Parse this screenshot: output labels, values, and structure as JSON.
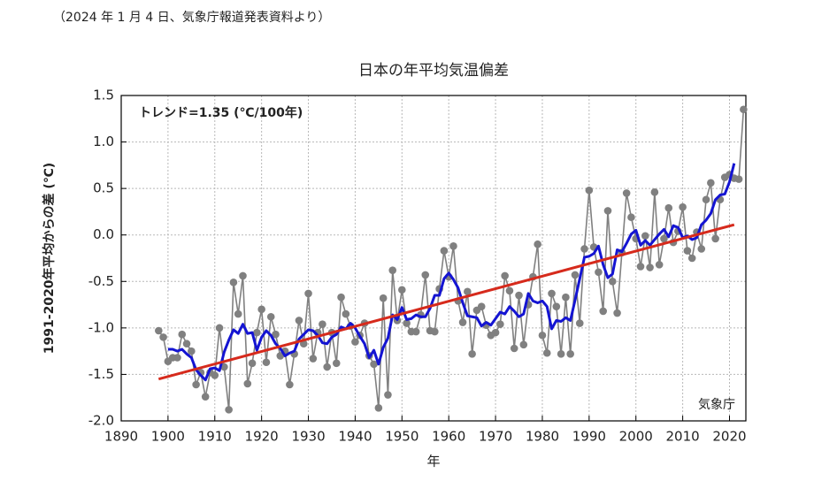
{
  "note": "（2024 年 1 月 4 日、気象庁報道発表資料より）",
  "chart_data": {
    "type": "line",
    "title": "日本の年平均気温偏差",
    "annotation": "トレンド=1.35 (℃/100年)",
    "source": "気象庁",
    "x_label": "年",
    "y_label": "1991-2020年平均からの差 (℃)",
    "x": [
      1898,
      1899,
      1900,
      1901,
      1902,
      1903,
      1904,
      1905,
      1906,
      1907,
      1908,
      1909,
      1910,
      1911,
      1912,
      1913,
      1914,
      1915,
      1916,
      1917,
      1918,
      1919,
      1920,
      1921,
      1922,
      1923,
      1924,
      1925,
      1926,
      1927,
      1928,
      1929,
      1930,
      1931,
      1932,
      1933,
      1934,
      1935,
      1936,
      1937,
      1938,
      1939,
      1940,
      1941,
      1942,
      1943,
      1944,
      1945,
      1946,
      1947,
      1948,
      1949,
      1950,
      1951,
      1952,
      1953,
      1954,
      1955,
      1956,
      1957,
      1958,
      1959,
      1960,
      1961,
      1962,
      1963,
      1964,
      1965,
      1966,
      1967,
      1968,
      1969,
      1970,
      1971,
      1972,
      1973,
      1974,
      1975,
      1976,
      1977,
      1978,
      1979,
      1980,
      1981,
      1982,
      1983,
      1984,
      1985,
      1986,
      1987,
      1988,
      1989,
      1990,
      1991,
      1992,
      1993,
      1994,
      1995,
      1996,
      1997,
      1998,
      1999,
      2000,
      2001,
      2002,
      2003,
      2004,
      2005,
      2006,
      2007,
      2008,
      2009,
      2010,
      2011,
      2012,
      2013,
      2014,
      2015,
      2016,
      2017,
      2018,
      2019,
      2020,
      2021,
      2022,
      2023
    ],
    "series": [
      {
        "color": "#808080",
        "markers": true,
        "values": [
          -1.03,
          -1.1,
          -1.36,
          -1.32,
          -1.32,
          -1.07,
          -1.17,
          -1.25,
          -1.61,
          -1.48,
          -1.74,
          -1.48,
          -1.51,
          -1.0,
          -1.42,
          -1.88,
          -0.51,
          -0.85,
          -0.44,
          -1.6,
          -1.38,
          -1.05,
          -0.8,
          -1.37,
          -0.88,
          -1.07,
          -1.3,
          -1.25,
          -1.61,
          -1.28,
          -0.92,
          -1.17,
          -0.63,
          -1.33,
          -1.05,
          -0.96,
          -1.42,
          -1.05,
          -1.38,
          -0.67,
          -0.85,
          -0.98,
          -1.15,
          -1.08,
          -0.95,
          -1.3,
          -1.39,
          -1.86,
          -0.68,
          -1.72,
          -0.38,
          -0.92,
          -0.59,
          -0.95,
          -1.04,
          -1.04,
          -0.86,
          -0.43,
          -1.03,
          -1.04,
          -0.58,
          -0.17,
          -0.45,
          -0.12,
          -0.71,
          -0.94,
          -0.61,
          -1.28,
          -0.81,
          -0.77,
          -0.97,
          -1.08,
          -1.05,
          -0.96,
          -0.44,
          -0.6,
          -1.22,
          -0.65,
          -1.18,
          -0.75,
          -0.45,
          -0.1,
          -1.08,
          -1.27,
          -0.63,
          -0.77,
          -1.28,
          -0.67,
          -1.28,
          -0.43,
          -0.95,
          -0.15,
          0.48,
          -0.13,
          -0.4,
          -0.82,
          0.26,
          -0.5,
          -0.84,
          -0.19,
          0.45,
          0.19,
          -0.04,
          -0.34,
          -0.01,
          -0.35,
          0.46,
          -0.32,
          -0.04,
          0.29,
          -0.08,
          0.04,
          0.3,
          -0.17,
          -0.25,
          0.03,
          -0.15,
          0.38,
          0.56,
          -0.04,
          0.38,
          0.62,
          0.65,
          0.61,
          0.6,
          1.35
        ]
      },
      {
        "color": "#1414d2",
        "markers": false,
        "values": [
          null,
          null,
          -1.23,
          -1.23,
          -1.25,
          -1.23,
          -1.28,
          -1.32,
          -1.45,
          -1.51,
          -1.56,
          -1.44,
          -1.43,
          -1.46,
          -1.26,
          -1.13,
          -1.02,
          -1.06,
          -0.96,
          -1.06,
          -1.05,
          -1.24,
          -1.1,
          -1.03,
          -1.08,
          -1.17,
          -1.22,
          -1.3,
          -1.27,
          -1.25,
          -1.12,
          -1.07,
          -1.02,
          -1.03,
          -1.08,
          -1.16,
          -1.17,
          -1.1,
          -1.07,
          -0.99,
          -1.01,
          -0.95,
          -1.0,
          -1.09,
          -1.17,
          -1.32,
          -1.24,
          -1.39,
          -1.21,
          -1.11,
          -0.86,
          -0.91,
          -0.78,
          -0.91,
          -0.9,
          -0.86,
          -0.88,
          -0.88,
          -0.79,
          -0.65,
          -0.65,
          -0.47,
          -0.41,
          -0.48,
          -0.57,
          -0.73,
          -0.87,
          -0.88,
          -0.89,
          -0.98,
          -0.94,
          -0.97,
          -0.9,
          -0.83,
          -0.85,
          -0.77,
          -0.82,
          -0.88,
          -0.85,
          -0.63,
          -0.71,
          -0.73,
          -0.71,
          -0.77,
          -1.01,
          -0.92,
          -0.93,
          -0.89,
          -0.92,
          -0.7,
          -0.47,
          -0.24,
          -0.23,
          -0.2,
          -0.12,
          -0.32,
          -0.46,
          -0.42,
          -0.16,
          -0.18,
          -0.09,
          0.01,
          0.05,
          -0.11,
          -0.06,
          -0.11,
          -0.05,
          0.01,
          0.06,
          -0.02,
          0.1,
          0.08,
          -0.03,
          -0.01,
          -0.05,
          -0.03,
          0.11,
          0.16,
          0.23,
          0.38,
          0.43,
          0.44,
          0.57,
          0.77,
          null,
          null
        ]
      }
    ],
    "trend": {
      "color": "#d62a1c",
      "x": [
        1898,
        2021
      ],
      "values": [
        -1.55,
        0.11
      ]
    },
    "xlim": [
      1890,
      2023.5
    ],
    "ylim": [
      -2.0,
      1.5
    ],
    "xticks": [
      1890,
      1900,
      1910,
      1920,
      1930,
      1940,
      1950,
      1960,
      1970,
      1980,
      1990,
      2000,
      2010,
      2020
    ],
    "yticks": [
      {
        "value": -2.0,
        "label": "-2.0"
      },
      -1.5,
      {
        "value": -1.0,
        "label": "-1.0"
      },
      -0.5,
      {
        "value": 0.0,
        "label": "0.0"
      },
      0.5,
      {
        "value": 1.0,
        "label": "1.0"
      },
      1.5
    ],
    "grid": true
  }
}
